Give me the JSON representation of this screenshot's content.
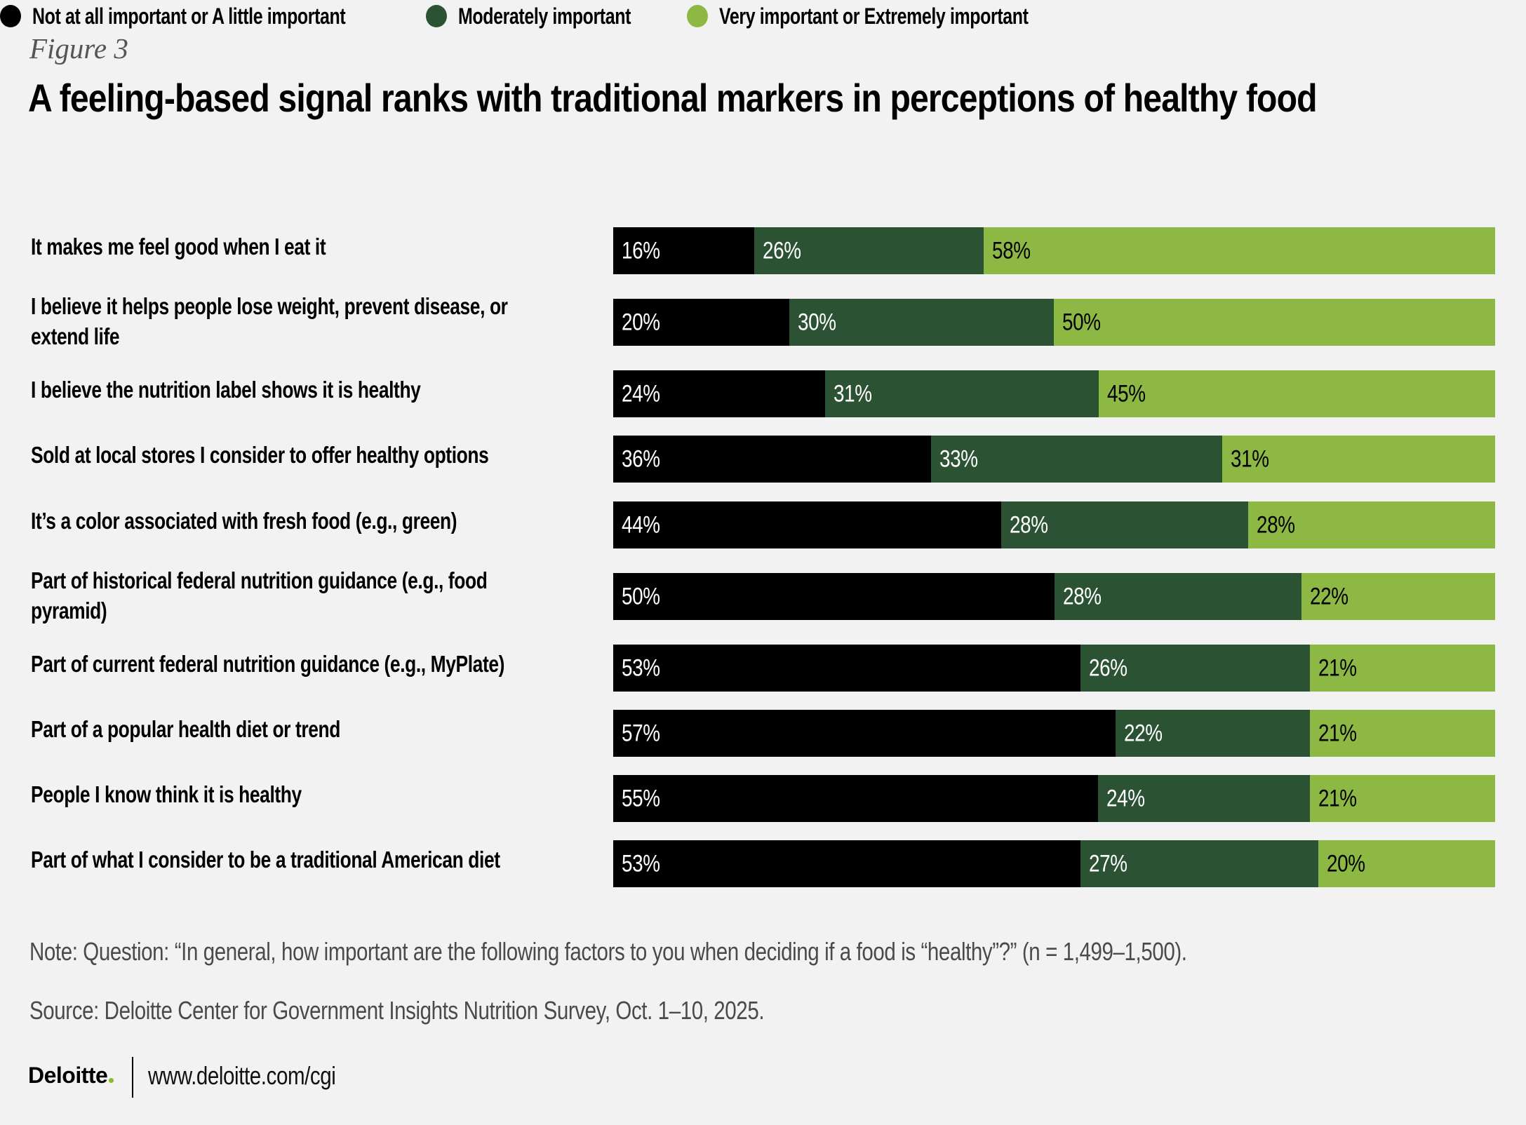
{
  "figure_label": "Figure 3",
  "title": "A feeling-based signal ranks with traditional markers in perceptions of healthy food",
  "colors": {
    "background": "#F1F2F1",
    "low": "#000000",
    "moderate": "#2C5234",
    "high": "#8CB843",
    "label_on_dark": "#FFFFFF",
    "label_on_light": "#000000",
    "logo_dot": "#86BC25"
  },
  "chart_data": {
    "type": "bar",
    "orientation": "horizontal",
    "stacked": true,
    "normalized_to": 100,
    "title": "A feeling-based signal ranks with traditional markers in perceptions of healthy food",
    "xlabel": "",
    "ylabel": "",
    "xlim": [
      0,
      100
    ],
    "grid": false,
    "legend_position": "top-left",
    "value_format": "{v}%",
    "categories": [
      "It makes me feel good when I eat it",
      "I believe it helps people lose weight, prevent disease, or extend life",
      "I believe the nutrition label shows it is healthy",
      "Sold at local stores I consider to offer healthy options",
      "It’s a color associated with fresh food (e.g., green)",
      "Part of historical federal nutrition guidance (e.g., food pyramid)",
      "Part of current federal nutrition guidance (e.g., MyPlate)",
      "Part of a popular health diet or trend",
      "People I know think it is healthy",
      "Part of what I consider to be a traditional American diet"
    ],
    "series": [
      {
        "name": "Not at all important or A little important",
        "color": "#000000",
        "values": [
          16,
          20,
          24,
          36,
          44,
          50,
          53,
          57,
          55,
          53
        ]
      },
      {
        "name": "Moderately important",
        "color": "#2C5234",
        "values": [
          26,
          30,
          31,
          33,
          28,
          28,
          26,
          22,
          24,
          27
        ]
      },
      {
        "name": "Very important or Extremely important",
        "color": "#8CB843",
        "values": [
          58,
          50,
          45,
          31,
          28,
          22,
          21,
          21,
          21,
          20
        ]
      }
    ]
  },
  "row_label_lines": [
    [
      "It makes me feel good when I eat it"
    ],
    [
      "I believe it helps people lose weight, prevent disease, or",
      "extend life"
    ],
    [
      "I believe the nutrition label shows it is healthy"
    ],
    [
      "Sold at local stores I consider to offer healthy options"
    ],
    [
      "It’s a color associated with fresh food (e.g., green)"
    ],
    [
      "Part of historical federal nutrition guidance (e.g., food",
      "pyramid)"
    ],
    [
      "Part of current federal nutrition guidance (e.g., MyPlate)"
    ],
    [
      "Part of a popular health diet or trend"
    ],
    [
      "People I know think it is healthy"
    ],
    [
      "Part of what I consider to be a traditional American diet"
    ]
  ],
  "note": "Note: Question: “In general, how important are the following factors to you when deciding if a food is “healthy”?” (n = 1,499–1,500).",
  "source": "Source: Deloitte Center for Government Insights Nutrition Survey, Oct. 1–10, 2025.",
  "footer": {
    "logo_text": "Deloitte",
    "url": "www.deloitte.com/cgi"
  }
}
